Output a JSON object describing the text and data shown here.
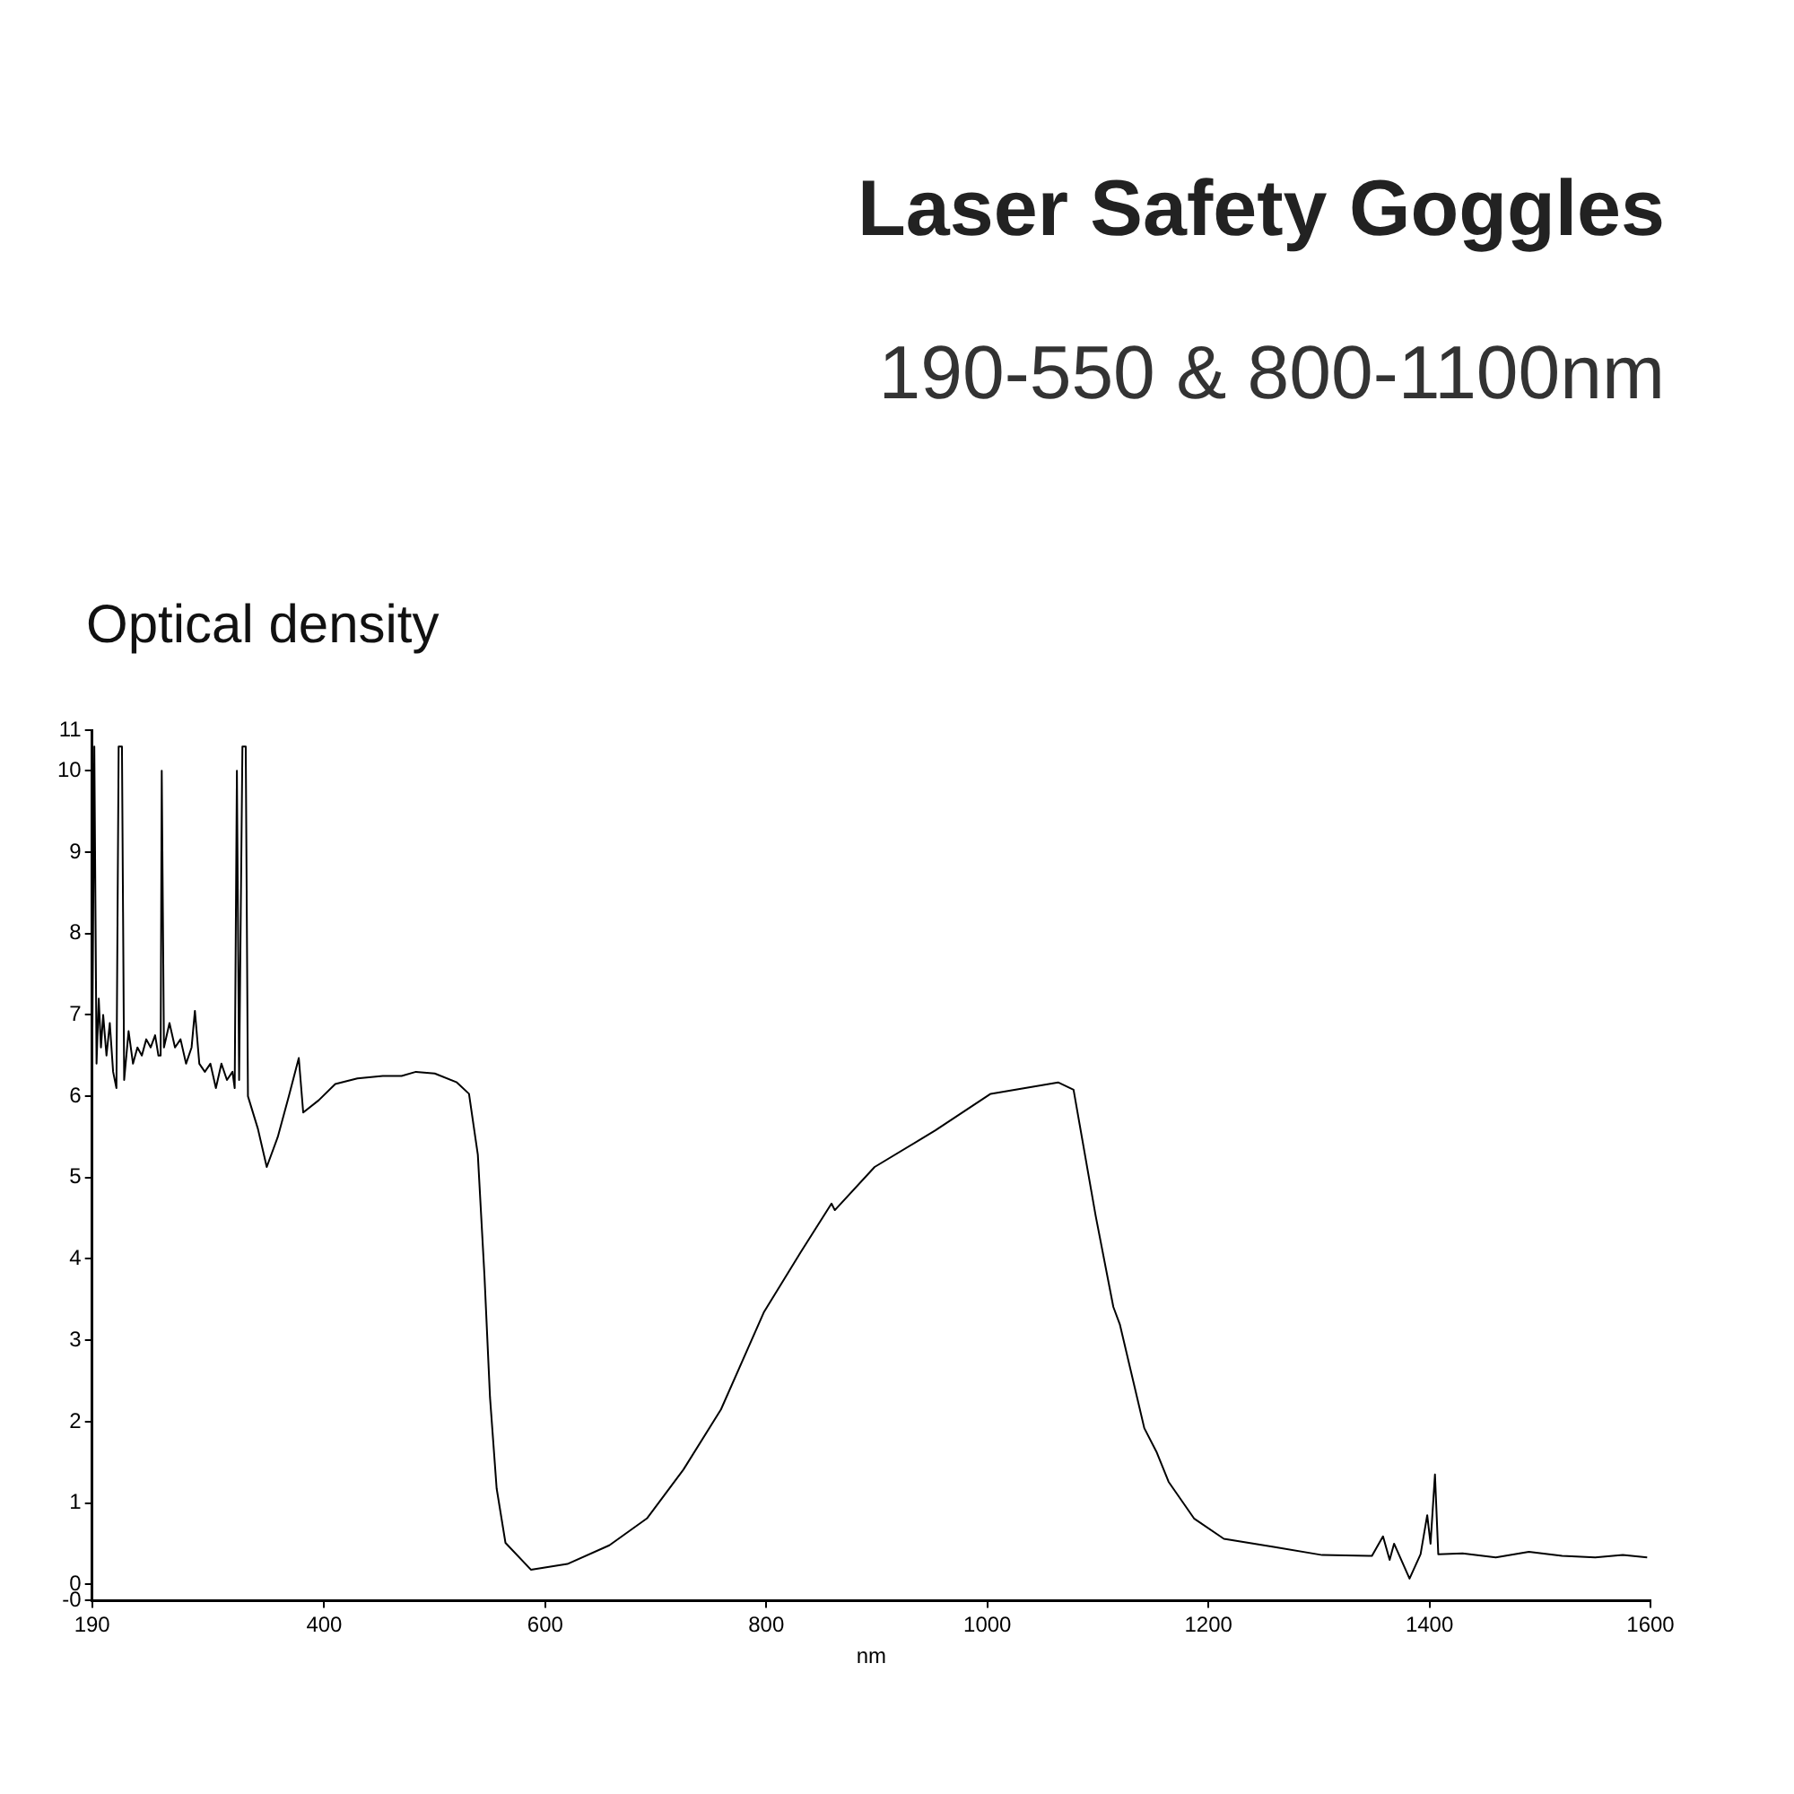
{
  "chart_data": {
    "type": "line",
    "title": "Laser Safety Goggles",
    "subtitle": "190-550 & 800-1100nm",
    "ylabel": "Optical density",
    "xlabel": "nm",
    "xlim": [
      190,
      1600
    ],
    "xticks": [
      190,
      400,
      600,
      800,
      1000,
      1200,
      1400,
      1600
    ],
    "ylim": [
      -0.2,
      10.5
    ],
    "yticks": [
      {
        "value": -0.2,
        "label": "-0"
      },
      0,
      1,
      2,
      3,
      4,
      5,
      6,
      7,
      8,
      9,
      10,
      {
        "value": 10.5,
        "label": "11"
      }
    ],
    "grid": false,
    "legend": false,
    "marker": "none",
    "line_style": "solid",
    "series": [
      {
        "color": "#000000",
        "x": [
          190,
          192,
          194,
          196,
          198,
          200,
          203,
          206,
          209,
          212,
          214,
          217,
          219,
          223,
          227,
          231,
          235,
          239,
          243,
          247,
          250,
          252,
          253,
          255,
          260,
          265,
          270,
          275,
          280,
          283,
          287,
          292,
          297,
          302,
          307,
          312,
          317,
          319,
          321,
          323,
          326,
          329,
          331,
          340,
          348,
          358,
          368,
          377,
          381,
          395,
          410,
          430,
          453,
          470,
          483,
          500,
          520,
          531,
          539,
          545,
          550,
          556,
          564,
          587,
          620,
          658,
          692,
          725,
          759,
          798,
          831,
          859,
          862,
          898,
          953,
          1003,
          1064,
          1078,
          1098,
          1114,
          1120,
          1142,
          1153,
          1164,
          1187,
          1214,
          1259,
          1303,
          1348,
          1358,
          1364,
          1368,
          1382,
          1392,
          1398,
          1401,
          1405,
          1408,
          1430,
          1460,
          1490,
          1520,
          1550,
          1575,
          1597
        ],
        "values": [
          6.3,
          10.3,
          6.4,
          7.2,
          6.6,
          7.0,
          6.5,
          6.9,
          6.3,
          6.1,
          10.3,
          10.3,
          6.2,
          6.8,
          6.4,
          6.6,
          6.5,
          6.7,
          6.6,
          6.75,
          6.5,
          6.5,
          10.0,
          6.6,
          6.9,
          6.6,
          6.7,
          6.4,
          6.6,
          7.05,
          6.4,
          6.3,
          6.4,
          6.1,
          6.4,
          6.2,
          6.3,
          6.1,
          10.0,
          6.2,
          10.3,
          10.3,
          6.0,
          5.6,
          5.13,
          5.5,
          6.0,
          6.47,
          5.8,
          5.95,
          6.15,
          6.22,
          6.25,
          6.25,
          6.3,
          6.28,
          6.17,
          6.03,
          5.28,
          3.79,
          2.3,
          1.18,
          0.51,
          0.18,
          0.25,
          0.48,
          0.81,
          1.41,
          2.15,
          3.35,
          4.08,
          4.68,
          4.6,
          5.13,
          5.58,
          6.03,
          6.17,
          6.08,
          4.53,
          3.41,
          3.19,
          1.92,
          1.63,
          1.26,
          0.81,
          0.56,
          0.46,
          0.36,
          0.35,
          0.59,
          0.3,
          0.5,
          0.07,
          0.37,
          0.85,
          0.5,
          1.35,
          0.37,
          0.38,
          0.33,
          0.4,
          0.35,
          0.33,
          0.36,
          0.33
        ]
      }
    ]
  }
}
